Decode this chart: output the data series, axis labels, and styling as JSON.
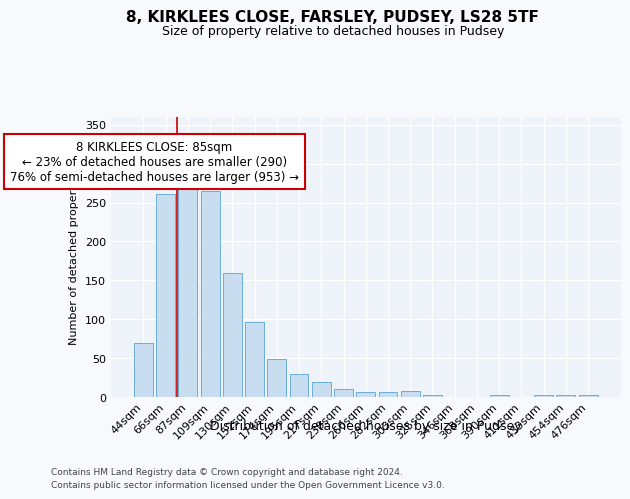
{
  "title1": "8, KIRKLEES CLOSE, FARSLEY, PUDSEY, LS28 5TF",
  "title2": "Size of property relative to detached houses in Pudsey",
  "xlabel": "Distribution of detached houses by size in Pudsey",
  "ylabel": "Number of detached properties",
  "categories": [
    "44sqm",
    "66sqm",
    "87sqm",
    "109sqm",
    "130sqm",
    "152sqm",
    "174sqm",
    "195sqm",
    "217sqm",
    "238sqm",
    "260sqm",
    "282sqm",
    "303sqm",
    "325sqm",
    "346sqm",
    "368sqm",
    "390sqm",
    "411sqm",
    "433sqm",
    "454sqm",
    "476sqm"
  ],
  "values": [
    70,
    261,
    293,
    265,
    160,
    97,
    49,
    29,
    19,
    10,
    6,
    7,
    8,
    3,
    0,
    0,
    3,
    0,
    3,
    3,
    3
  ],
  "bar_color": "#c9ddf0",
  "bar_edge_color": "#6aaed6",
  "vline_xindex": 2,
  "vline_color": "#cc0000",
  "annotation_line1": "8 KIRKLEES CLOSE: 85sqm",
  "annotation_line2": "← 23% of detached houses are smaller (290)",
  "annotation_line3": "76% of semi-detached houses are larger (953) →",
  "annotation_box_facecolor": "white",
  "annotation_box_edgecolor": "#cc0000",
  "ylim_max": 360,
  "yticks": [
    0,
    50,
    100,
    150,
    200,
    250,
    300,
    350
  ],
  "footer1": "Contains HM Land Registry data © Crown copyright and database right 2024.",
  "footer2": "Contains public sector information licensed under the Open Government Licence v3.0.",
  "fig_bg_color": "#f7f9fc",
  "plot_bg_color": "#eef3f9",
  "grid_color": "#ffffff",
  "title1_fontsize": 11,
  "title2_fontsize": 9,
  "ylabel_fontsize": 8,
  "xlabel_fontsize": 9,
  "tick_fontsize": 8,
  "annot_fontsize": 8.5,
  "footer_fontsize": 6.5
}
